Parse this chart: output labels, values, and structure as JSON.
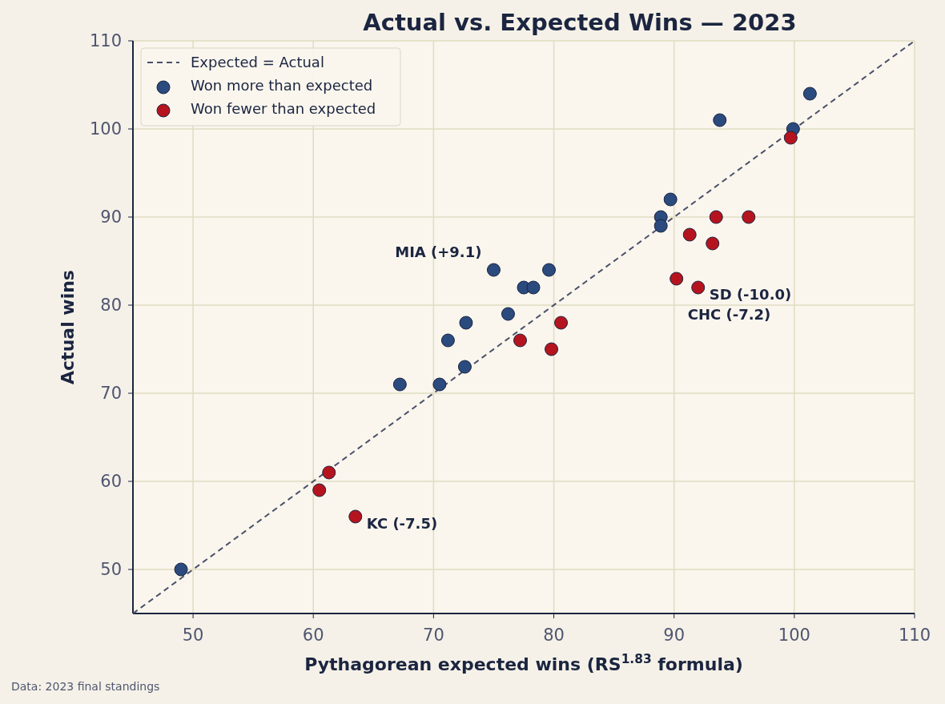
{
  "chart_data": {
    "type": "scatter",
    "title": "Actual vs. Expected Wins — 2023",
    "xlabel": "Pythagorean expected wins  (RS$^{1.83}$ formula)",
    "ylabel": "Actual wins",
    "xlim": [
      45,
      110
    ],
    "ylim": [
      45,
      110
    ],
    "xticks": [
      50,
      60,
      70,
      80,
      90,
      100,
      110
    ],
    "yticks": [
      50,
      60,
      70,
      80,
      90,
      100,
      110
    ],
    "grid": true,
    "legend": "top left",
    "series": [
      {
        "name": "Expected = Actual",
        "type": "line",
        "line_style": "dashed",
        "marker": "none",
        "color": "#4a5068",
        "x": [
          45,
          110
        ],
        "values": [
          45,
          110
        ]
      },
      {
        "name": "Won more than expected",
        "marker": "circle",
        "color": "#2b4a7e",
        "x": [
          49.0,
          67.2,
          70.5,
          71.2,
          72.6,
          72.7,
          75.0,
          76.2,
          77.5,
          78.3,
          79.6,
          88.9,
          88.9,
          89.7,
          93.8,
          99.9,
          101.3
        ],
        "values": [
          50,
          71,
          71,
          76,
          73,
          78,
          84,
          79,
          82,
          82,
          84,
          90,
          89,
          92,
          101,
          100,
          104
        ]
      },
      {
        "name": "Won fewer than expected",
        "marker": "circle",
        "color": "#b5141e",
        "x": [
          60.5,
          61.3,
          63.5,
          77.2,
          79.8,
          80.6,
          90.2,
          91.3,
          92.0,
          93.2,
          93.5,
          96.2,
          99.7
        ],
        "values": [
          59,
          61,
          56,
          76,
          75,
          78,
          83,
          88,
          82,
          87,
          90,
          90,
          99
        ]
      }
    ],
    "annotations": [
      {
        "text": "MIA (+9.1)",
        "x": 75.0,
        "y": 84
      },
      {
        "text": "SD (-10.0)",
        "x": 92.0,
        "y": 82
      },
      {
        "text": "CHC (-7.2)",
        "x": 90.2,
        "y": 83
      },
      {
        "text": "KC (-7.5)",
        "x": 63.5,
        "y": 56
      },
      "Data: 2023 final standings"
    ]
  }
}
